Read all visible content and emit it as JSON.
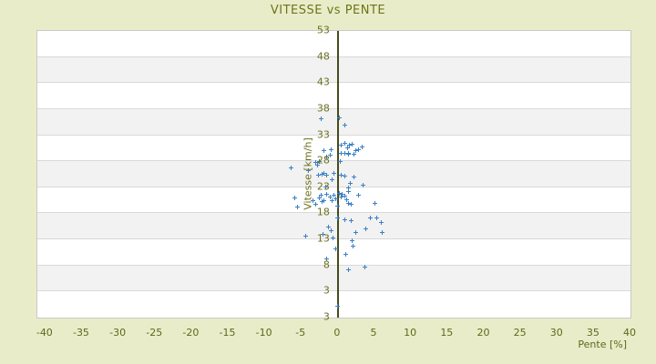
{
  "colors": {
    "page_background": "#e9ecc9",
    "band_white": "#ffffff",
    "band_gray": "#f2f2f2",
    "gridline": "#d9d9d9",
    "plot_border": "#c9c9c9",
    "zero_axis_line": "#474b1c",
    "title_text": "#6e741a",
    "tick_text": "#6b711c",
    "marker": "#3d80c4"
  },
  "chart_data": {
    "type": "scatter",
    "title": "VITESSE vs PENTE",
    "xlabel": "Pente [%]",
    "ylabel": "Vitesse [km/h]",
    "xlim": [
      -41.1,
      40.0
    ],
    "ylim": [
      -2,
      53
    ],
    "x_ticks": [
      -40,
      -35,
      -30,
      -25,
      -20,
      -15,
      -10,
      -5,
      0,
      5,
      10,
      15,
      20,
      25,
      30,
      35,
      40
    ],
    "y_ticks": [
      53,
      48,
      43,
      38,
      33,
      28,
      23,
      18,
      13,
      8,
      3
    ],
    "y_axis_edge_label": "3",
    "grid": "horizontal-bands",
    "legend": "none",
    "marker": "plus",
    "series": [
      {
        "name": "vitesse",
        "color": "#3d80c4",
        "points": [
          [
            -2.3,
            36.1
          ],
          [
            0.2,
            36.3
          ],
          [
            0.9,
            35.0
          ],
          [
            -1.9,
            30.1
          ],
          [
            -0.9,
            30.2
          ],
          [
            0.4,
            31.1
          ],
          [
            1.0,
            31.4
          ],
          [
            1.3,
            30.5
          ],
          [
            1.6,
            31.1
          ],
          [
            1.9,
            31.2
          ],
          [
            2.4,
            30.0
          ],
          [
            2.8,
            30.2
          ],
          [
            3.3,
            30.7
          ],
          [
            -3.0,
            27.8
          ],
          [
            -2.6,
            28.0
          ],
          [
            -2.8,
            27.2
          ],
          [
            0.3,
            27.9
          ],
          [
            -1.6,
            28.9
          ],
          [
            -1.0,
            29.1
          ],
          [
            0.4,
            29.6
          ],
          [
            0.9,
            29.6
          ],
          [
            1.4,
            29.5
          ],
          [
            1.5,
            29.4
          ],
          [
            2.2,
            29.3
          ],
          [
            -6.4,
            26.7
          ],
          [
            -4.0,
            26.2
          ],
          [
            -2.7,
            25.4
          ],
          [
            -2.2,
            25.5
          ],
          [
            -1.9,
            25.7
          ],
          [
            -1.6,
            25.4
          ],
          [
            -0.6,
            25.7
          ],
          [
            0.5,
            25.3
          ],
          [
            0.9,
            25.2
          ],
          [
            2.2,
            25.0
          ],
          [
            -0.8,
            24.4
          ],
          [
            -1.7,
            23.0
          ],
          [
            1.7,
            23.8
          ],
          [
            3.4,
            23.4
          ],
          [
            1.5,
            22.9
          ],
          [
            1.4,
            22.2
          ],
          [
            -5.9,
            21.0
          ],
          [
            -5.5,
            19.2
          ],
          [
            -3.4,
            20.4
          ],
          [
            -3.0,
            19.7
          ],
          [
            -2.5,
            21.0
          ],
          [
            -2.3,
            21.5
          ],
          [
            -2.2,
            20.2
          ],
          [
            -1.9,
            20.4
          ],
          [
            -1.5,
            21.6
          ],
          [
            -1.0,
            21.2
          ],
          [
            -0.8,
            20.4
          ],
          [
            -0.5,
            21.5
          ],
          [
            -0.3,
            20.8
          ],
          [
            0.0,
            19.4
          ],
          [
            0.2,
            21.9
          ],
          [
            0.4,
            21.2
          ],
          [
            0.6,
            21.6
          ],
          [
            0.9,
            21.3
          ],
          [
            1.2,
            20.6
          ],
          [
            1.5,
            19.9
          ],
          [
            1.8,
            19.7
          ],
          [
            2.8,
            21.5
          ],
          [
            5.0,
            20.0
          ],
          [
            0.0,
            17.1
          ],
          [
            1.0,
            16.7
          ],
          [
            1.8,
            16.6
          ],
          [
            4.4,
            17.2
          ],
          [
            5.3,
            17.1
          ],
          [
            5.9,
            16.2
          ],
          [
            -4.4,
            13.6
          ],
          [
            -2.0,
            13.9
          ],
          [
            -1.3,
            15.4
          ],
          [
            -0.9,
            14.6
          ],
          [
            -0.7,
            13.2
          ],
          [
            1.9,
            12.7
          ],
          [
            2.5,
            14.4
          ],
          [
            3.8,
            15.0
          ],
          [
            6.1,
            14.3
          ],
          [
            -0.3,
            11.1
          ],
          [
            1.1,
            10.1
          ],
          [
            2.1,
            11.7
          ],
          [
            -1.5,
            9.2
          ],
          [
            1.5,
            7.1
          ],
          [
            3.7,
            7.7
          ],
          [
            0.0,
            0.1
          ]
        ]
      }
    ]
  }
}
